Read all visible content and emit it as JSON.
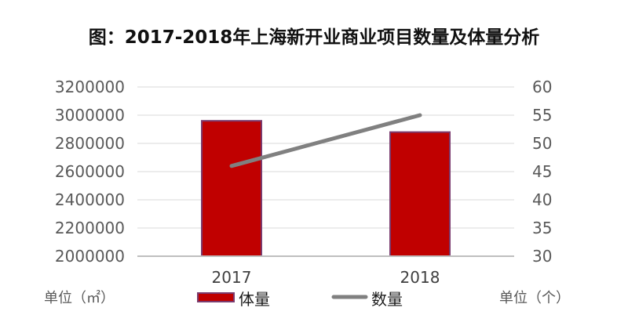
{
  "chart_data": {
    "type": "bar",
    "title": "图：2017-2018年上海新开业商业项目数量及体量分析",
    "categories": [
      "2017",
      "2018"
    ],
    "series": [
      {
        "name": "体量",
        "type": "bar",
        "axis": "left",
        "values": [
          2960000,
          2880000
        ],
        "color": "#c00000"
      },
      {
        "name": "数量",
        "type": "line",
        "axis": "right",
        "values": [
          46,
          55
        ],
        "color": "#808080"
      }
    ],
    "y_left": {
      "label": "单位（㎡）",
      "min": 2000000,
      "max": 3200000,
      "step": 200000,
      "ticks": [
        "3200000",
        "3000000",
        "2800000",
        "2600000",
        "2400000",
        "2200000",
        "2000000"
      ]
    },
    "y_right": {
      "label": "单位（个）",
      "min": 30,
      "max": 60,
      "step": 5,
      "ticks": [
        "60",
        "55",
        "50",
        "45",
        "40",
        "35",
        "30"
      ]
    },
    "grid": true,
    "legend": "bottom"
  }
}
